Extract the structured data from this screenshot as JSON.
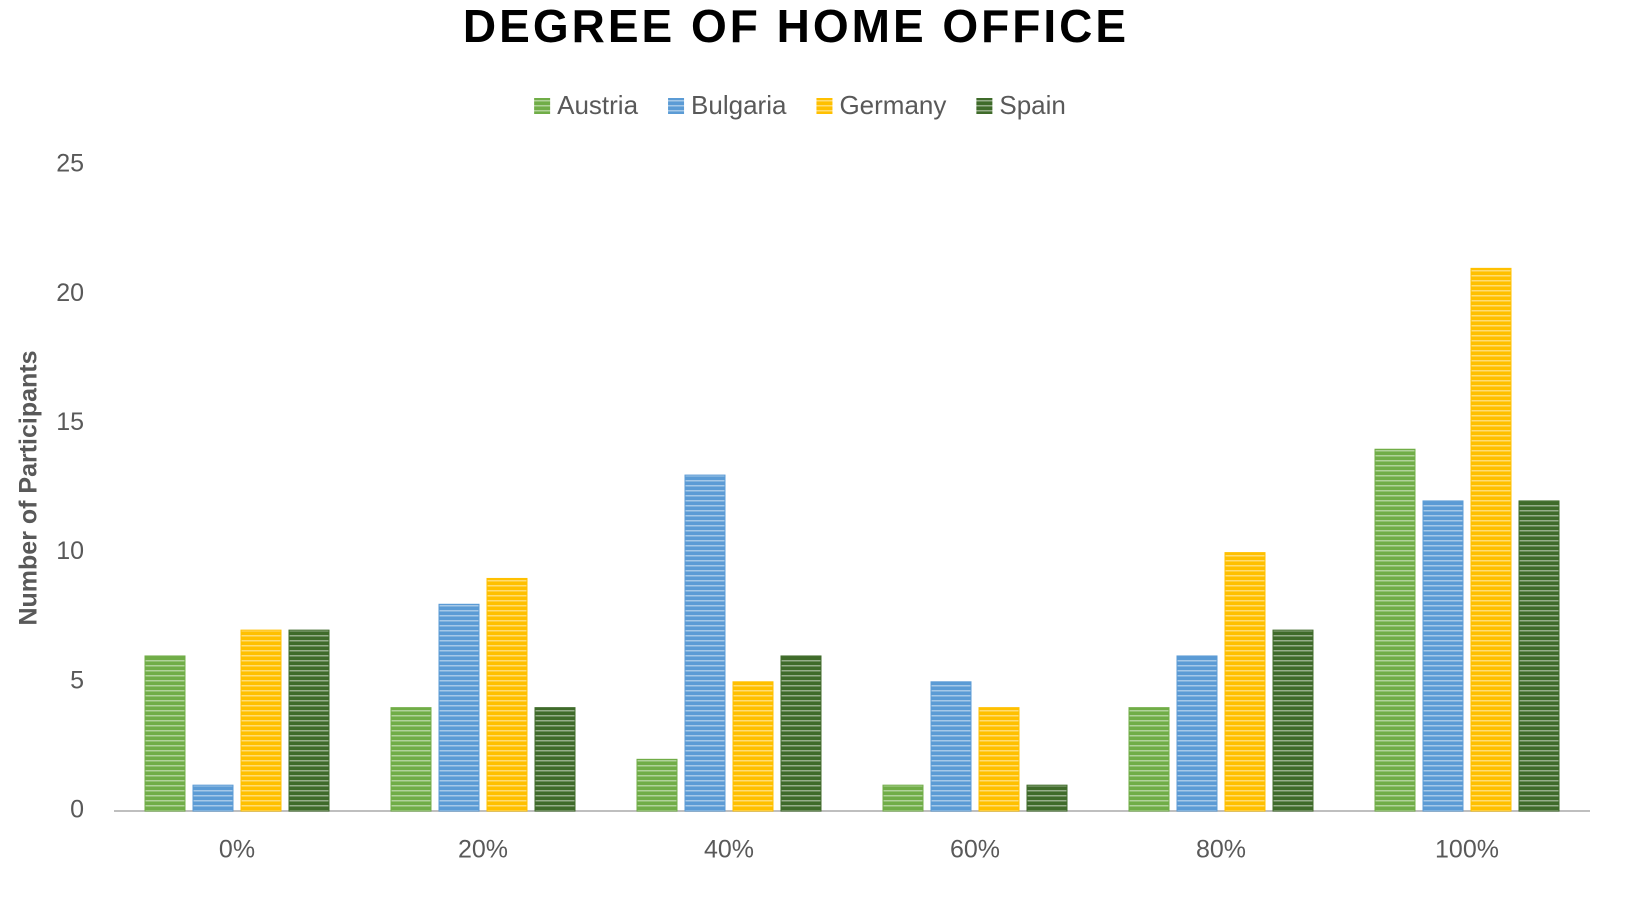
{
  "chart_data": {
    "type": "bar",
    "title": "DEGREE OF HOME OFFICE",
    "y_label": "Number of Participants",
    "categories": [
      "0%",
      "20%",
      "40%",
      "60%",
      "80%",
      "100%"
    ],
    "series": [
      {
        "name": "Austria",
        "color": "#70ad47",
        "values": [
          6,
          4,
          2,
          1,
          4,
          14
        ]
      },
      {
        "name": "Bulgaria",
        "color": "#5b9bd5",
        "values": [
          1,
          8,
          13,
          5,
          6,
          12
        ]
      },
      {
        "name": "Germany",
        "color": "#ffc000",
        "values": [
          7,
          9,
          5,
          4,
          10,
          21
        ]
      },
      {
        "name": "Spain",
        "color": "#3f6b2a",
        "values": [
          7,
          4,
          6,
          1,
          7,
          12
        ]
      }
    ],
    "ylim": [
      0,
      25
    ],
    "yticks": [
      0,
      5,
      10,
      15,
      20,
      25
    ],
    "legend": "top",
    "grid": false
  }
}
